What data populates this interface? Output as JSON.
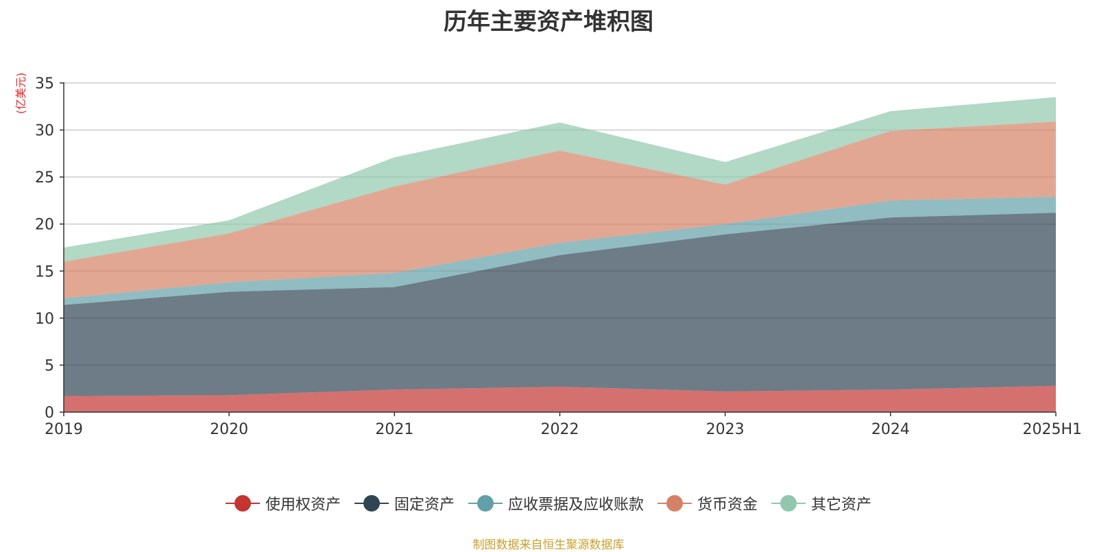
{
  "colors": {
    "use_right_assets": "#c23531",
    "fixed_assets": "#2f4554",
    "receivables": "#61a0a8",
    "cash": "#d48265",
    "other_assets": "#91c7ae",
    "unit_label": "#e8272b",
    "source_note": "#c8a02c"
  },
  "chart_data": {
    "type": "area",
    "stacked": true,
    "title": "历年主要资产堆积图",
    "ylabel": "(亿美元)",
    "xlabel": "",
    "categories": [
      "2019",
      "2020",
      "2021",
      "2022",
      "2023",
      "2024",
      "2025H1"
    ],
    "ylim": [
      0,
      35
    ],
    "yticks": [
      0,
      5,
      10,
      15,
      20,
      25,
      30,
      35
    ],
    "grid": true,
    "legend_position": "bottom",
    "series": [
      {
        "name": "使用权资产",
        "color": "#c23531",
        "values": [
          1.7,
          1.8,
          2.4,
          2.7,
          2.2,
          2.4,
          2.8
        ]
      },
      {
        "name": "固定资产",
        "color": "#2f4554",
        "values": [
          9.7,
          11.0,
          10.9,
          14.0,
          16.7,
          18.3,
          18.4
        ]
      },
      {
        "name": "应收票据及应收账款",
        "color": "#61a0a8",
        "values": [
          0.7,
          1.0,
          1.5,
          1.3,
          1.1,
          1.8,
          1.7
        ]
      },
      {
        "name": "货币资金",
        "color": "#d48265",
        "values": [
          3.9,
          5.2,
          9.2,
          9.8,
          4.2,
          7.4,
          8.0
        ]
      },
      {
        "name": "其它资产",
        "color": "#91c7ae",
        "values": [
          1.5,
          1.4,
          3.1,
          3.0,
          2.4,
          2.1,
          2.6
        ]
      }
    ]
  },
  "source_note": "制图数据来自恒生聚源数据库"
}
